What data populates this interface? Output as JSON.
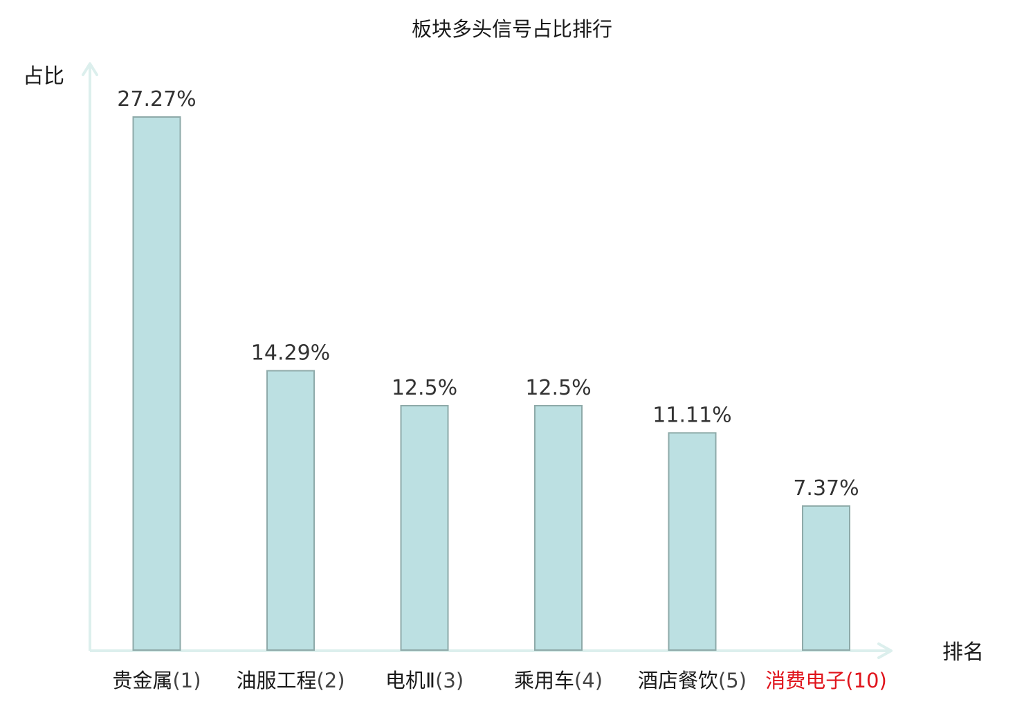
{
  "chart_data": {
    "type": "bar",
    "title": "板块多头信号占比排行",
    "xlabel": "排名",
    "ylabel": "占比",
    "ylim": [
      0,
      30
    ],
    "grid": false,
    "legend": "none",
    "categories": [
      {
        "name": "贵金属",
        "rank": "(1)",
        "highlight": false
      },
      {
        "name": "油服工程",
        "rank": "(2)",
        "highlight": false
      },
      {
        "name": "电机Ⅱ",
        "rank": "(3)",
        "highlight": false
      },
      {
        "name": "乘用车",
        "rank": "(4)",
        "highlight": false
      },
      {
        "name": "酒店餐饮",
        "rank": "(5)",
        "highlight": false
      },
      {
        "name": "消费电子",
        "rank": "(10)",
        "highlight": true
      }
    ],
    "values": [
      27.27,
      14.29,
      12.5,
      12.5,
      11.11,
      7.37
    ],
    "value_labels": [
      "27.27%",
      "14.29%",
      "12.5%",
      "12.5%",
      "11.11%",
      "7.37%"
    ]
  },
  "colors": {
    "bar_fill": "#bce0e2",
    "bar_stroke": "#8eaaa9",
    "axis": "#dcefed",
    "label_normal": "#1a1a1a",
    "rank_normal": "#444444",
    "highlight": "#e0141c"
  }
}
